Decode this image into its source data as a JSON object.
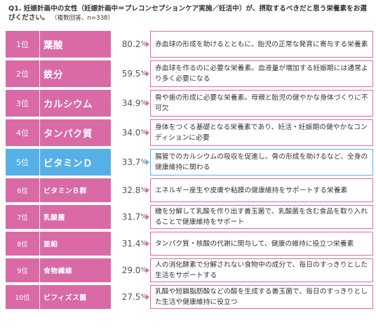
{
  "header": {
    "title": "Q1. 妊娠計画中の女性（妊娠計画中＝プレコンセプションケア実施／妊活中）が、摂取するべきだと思う栄養素をお選びください。",
    "note": "（複数回答、n=338）"
  },
  "colors": {
    "default": "#d96aa6",
    "highlight": "#56b0e8"
  },
  "chart_data": {
    "type": "table",
    "rows": [
      {
        "rank": "1位",
        "name": "葉酸",
        "pct": "80.2",
        "unit": "%",
        "highlight": false,
        "desc": "赤血球の形成を助けるとともに、胎児の正常な発育に寄与する栄養素"
      },
      {
        "rank": "2位",
        "name": "鉄分",
        "pct": "59.5",
        "unit": "%",
        "highlight": false,
        "desc": "赤血球を作るのに必要な栄養素。血液量が増加する妊娠期には通常より多く必要になる"
      },
      {
        "rank": "3位",
        "name": "カルシウム",
        "pct": "34.9",
        "unit": "%",
        "highlight": false,
        "desc": "骨や歯の形成に必要な栄養素。母親と胎児の健やかな身体づくりに不可欠"
      },
      {
        "rank": "4位",
        "name": "タンパク質",
        "pct": "34.0",
        "unit": "%",
        "highlight": false,
        "desc": "身体をつくる基礎となる栄養素であり、妊活・妊娠期の健やかなコンディションに必要"
      },
      {
        "rank": "5位",
        "name": "ビタミンＤ",
        "pct": "33.7",
        "unit": "%",
        "highlight": true,
        "desc": "腸管でのカルシウムの吸収を促進し、骨の形成を助けるなど、全身の健康維持に関わる"
      },
      {
        "rank": "6位",
        "name": "ビタミンＢ群",
        "pct": "32.8",
        "unit": "%",
        "highlight": false,
        "desc": "エネルギー産生や皮膚や粘膜の健康維持をサポートする栄養素"
      },
      {
        "rank": "7位",
        "name": "乳酸菌",
        "pct": "31.7",
        "unit": "%",
        "highlight": false,
        "desc": "糖を分解して乳酸を作り出す善玉菌で、乳酸菌を含む食品を取り入れることで健康維持をサポート"
      },
      {
        "rank": "8位",
        "name": "亜鉛",
        "pct": "31.4",
        "unit": "%",
        "highlight": false,
        "desc": "タンパク質・核酸の代謝に関与して、健康の維持に役立つ栄養素"
      },
      {
        "rank": "9位",
        "name": "食物繊維",
        "pct": "29.0",
        "unit": "%",
        "highlight": false,
        "desc": "人の消化酵素で分解されない食物中の成分で、毎日のすっきりとした生活をサポートする"
      },
      {
        "rank": "10位",
        "name": "ビフィズス菌",
        "pct": "27.5",
        "unit": "%",
        "highlight": false,
        "desc": "乳酸や短鎖脂肪酸などの酸を生成する善玉菌で、毎日のすっきりとした生活や健康維持に役立つ"
      }
    ]
  }
}
